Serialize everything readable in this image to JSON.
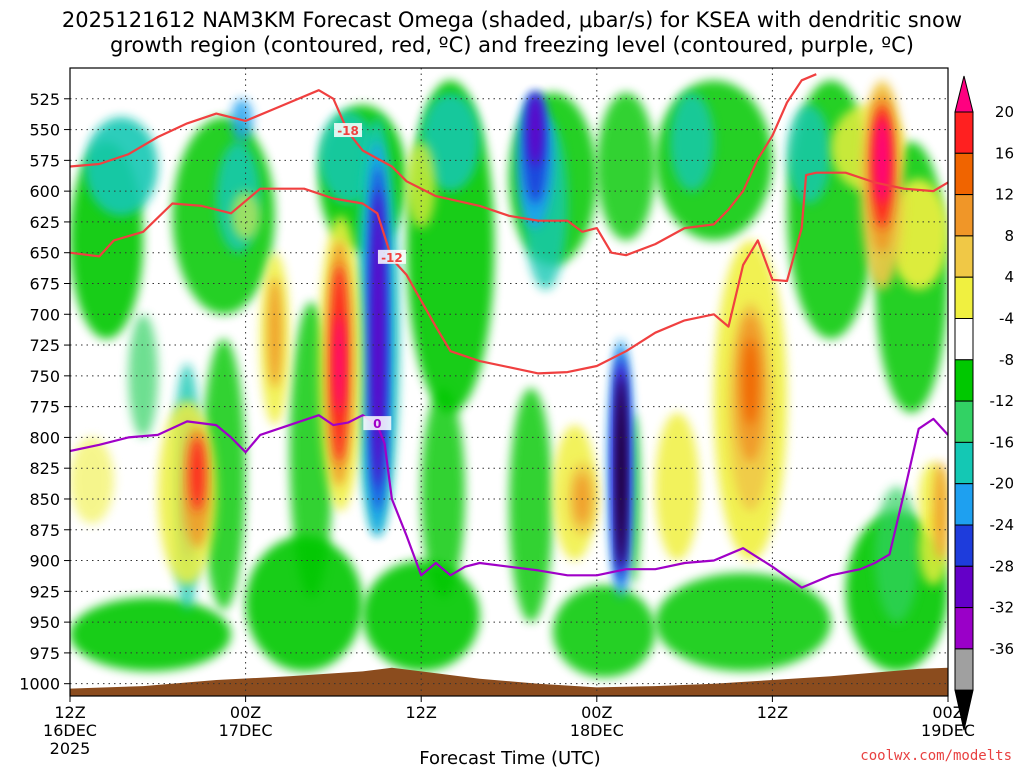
{
  "title": {
    "line1": "2025121612 NAM3KM Forecast Omega (shaded, μbar/s) for KSEA with dendritic snow",
    "line2": "growth region (contoured, red, ºC) and freezing level (contoured, purple, ºC)"
  },
  "credit": "coolwx.com/modelts",
  "chart_data": {
    "type": "heatmap",
    "title": "2025121612 NAM3KM Forecast Omega (shaded, μbar/s) for KSEA with dendritic snow growth region (contoured, red, ºC) and freezing level (contoured, purple, ºC)",
    "xlabel": "Forecast Time (UTC)",
    "ylabel": "",
    "x_range_hours": [
      0,
      60
    ],
    "x_ticks": [
      {
        "hour": 0,
        "label1": "12Z",
        "label2": "16DEC",
        "label3": "2025"
      },
      {
        "hour": 12,
        "label1": "00Z",
        "label2": "17DEC",
        "label3": ""
      },
      {
        "hour": 24,
        "label1": "12Z",
        "label2": "",
        "label3": ""
      },
      {
        "hour": 36,
        "label1": "00Z",
        "label2": "18DEC",
        "label3": ""
      },
      {
        "hour": 48,
        "label1": "12Z",
        "label2": "",
        "label3": ""
      },
      {
        "hour": 60,
        "label1": "00Z",
        "label2": "19DEC",
        "label3": ""
      }
    ],
    "y_range_hpa": [
      1010,
      500
    ],
    "y_ticks": [
      525,
      550,
      575,
      600,
      625,
      650,
      675,
      700,
      725,
      750,
      775,
      800,
      825,
      850,
      875,
      900,
      925,
      950,
      975,
      1000
    ],
    "grid": true,
    "colorbar": {
      "labels": [
        "20",
        "16",
        "12",
        "8",
        "4",
        "-4",
        "-8",
        "-12",
        "-16",
        "-20",
        "-24",
        "-28",
        "-32",
        "-36"
      ],
      "colors": [
        "#ff0080",
        "#ff2020",
        "#f06400",
        "#f09628",
        "#f0c846",
        "#f0f040",
        "#ffffff",
        "#00c800",
        "#32d264",
        "#14c8b4",
        "#1ea0f0",
        "#1e3cdc",
        "#6400c8",
        "#9a00c8",
        "#a0a0a0",
        "#000000"
      ]
    },
    "series": [
      {
        "name": "-18",
        "color": "#f04040",
        "contour_label": "-18",
        "points": [
          [
            0,
            580
          ],
          [
            2,
            578
          ],
          [
            4,
            570
          ],
          [
            6,
            556
          ],
          [
            8,
            545
          ],
          [
            10,
            537
          ],
          [
            12,
            543
          ],
          [
            14,
            533
          ],
          [
            15,
            528
          ],
          [
            17,
            518
          ],
          [
            18,
            525
          ],
          [
            19,
            552
          ],
          [
            20,
            567
          ],
          [
            22,
            580
          ],
          [
            23,
            592
          ],
          [
            25,
            604
          ],
          [
            28,
            612
          ],
          [
            30,
            620
          ],
          [
            32,
            624
          ],
          [
            34,
            624
          ],
          [
            35,
            633
          ],
          [
            36,
            630
          ],
          [
            37,
            650
          ],
          [
            38,
            652
          ],
          [
            40,
            643
          ],
          [
            42,
            630
          ],
          [
            44,
            627
          ],
          [
            45,
            615
          ],
          [
            46,
            600
          ],
          [
            47,
            574
          ],
          [
            48,
            555
          ],
          [
            49,
            528
          ],
          [
            50,
            510
          ],
          [
            51,
            505
          ]
        ]
      },
      {
        "name": "-12",
        "color": "#f04040",
        "contour_label": "-12",
        "points": [
          [
            0,
            650
          ],
          [
            2,
            653
          ],
          [
            3,
            640
          ],
          [
            5,
            633
          ],
          [
            7,
            610
          ],
          [
            9,
            612
          ],
          [
            11,
            618
          ],
          [
            13,
            598
          ],
          [
            16,
            598
          ],
          [
            18,
            606
          ],
          [
            20,
            610
          ],
          [
            21,
            618
          ],
          [
            22,
            655
          ],
          [
            23,
            668
          ],
          [
            25,
            710
          ],
          [
            26,
            730
          ],
          [
            28,
            738
          ],
          [
            30,
            743
          ],
          [
            32,
            748
          ],
          [
            34,
            747
          ],
          [
            36,
            742
          ],
          [
            38,
            730
          ],
          [
            40,
            715
          ],
          [
            42,
            705
          ],
          [
            44,
            700
          ],
          [
            45,
            710
          ],
          [
            46,
            660
          ],
          [
            47,
            640
          ],
          [
            48,
            672
          ],
          [
            49,
            673
          ],
          [
            50,
            630
          ],
          [
            50.3,
            587
          ],
          [
            51,
            585
          ],
          [
            53,
            585
          ],
          [
            55,
            593
          ],
          [
            57,
            598
          ],
          [
            59,
            600
          ],
          [
            60,
            593
          ]
        ]
      },
      {
        "name": "0",
        "color": "#a000c8",
        "contour_label": "0",
        "points": [
          [
            0,
            811
          ],
          [
            2,
            806
          ],
          [
            4,
            800
          ],
          [
            6,
            798
          ],
          [
            8,
            787
          ],
          [
            10,
            790
          ],
          [
            11,
            800
          ],
          [
            12,
            812
          ],
          [
            13,
            798
          ],
          [
            15,
            790
          ],
          [
            17,
            782
          ],
          [
            18,
            790
          ],
          [
            19,
            788
          ],
          [
            20,
            782
          ],
          [
            21,
            790
          ],
          [
            21.5,
            805
          ],
          [
            22,
            850
          ],
          [
            23,
            880
          ],
          [
            24,
            912
          ],
          [
            25,
            902
          ],
          [
            26,
            912
          ],
          [
            27,
            905
          ],
          [
            28,
            902
          ],
          [
            30,
            905
          ],
          [
            32,
            908
          ],
          [
            34,
            912
          ],
          [
            36,
            912
          ],
          [
            38,
            907
          ],
          [
            40,
            907
          ],
          [
            42,
            902
          ],
          [
            44,
            900
          ],
          [
            46,
            890
          ],
          [
            48,
            905
          ],
          [
            50,
            922
          ],
          [
            52,
            912
          ],
          [
            54,
            907
          ],
          [
            55,
            902
          ],
          [
            56,
            895
          ],
          [
            57,
            845
          ],
          [
            58,
            793
          ],
          [
            59,
            785
          ],
          [
            60,
            798
          ]
        ]
      }
    ]
  }
}
